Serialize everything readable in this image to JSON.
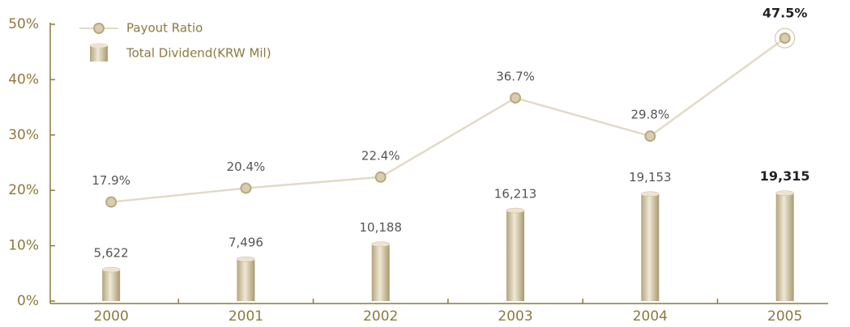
{
  "chart_data": {
    "type": "bar-line",
    "categories": [
      "2000",
      "2001",
      "2002",
      "2003",
      "2004",
      "2005"
    ],
    "series": [
      {
        "name": "Total Dividend(KRW Mil)",
        "type": "bar",
        "color": "#c8ba98",
        "values": [
          5622,
          7496,
          10188,
          16213,
          19153,
          19315
        ],
        "value_labels": [
          "5,622",
          "7,496",
          "10,188",
          "16,213",
          "19,153",
          "19,315"
        ]
      },
      {
        "name": "Payout Ratio",
        "type": "line",
        "color": "#e2dac8",
        "values": [
          17.9,
          20.4,
          22.4,
          36.7,
          29.8,
          47.5
        ],
        "value_labels": [
          "17.9%",
          "20.4%",
          "22.4%",
          "36.7%",
          "29.8%",
          "47.5%"
        ]
      }
    ],
    "ylim": [
      0,
      50
    ],
    "yticks": [
      {
        "value": 0,
        "label": "0%"
      },
      {
        "value": 10,
        "label": "10%"
      },
      {
        "value": 20,
        "label": "20%"
      },
      {
        "value": 30,
        "label": "30%"
      },
      {
        "value": 40,
        "label": "40%"
      },
      {
        "value": 50,
        "label": "50%"
      }
    ]
  }
}
